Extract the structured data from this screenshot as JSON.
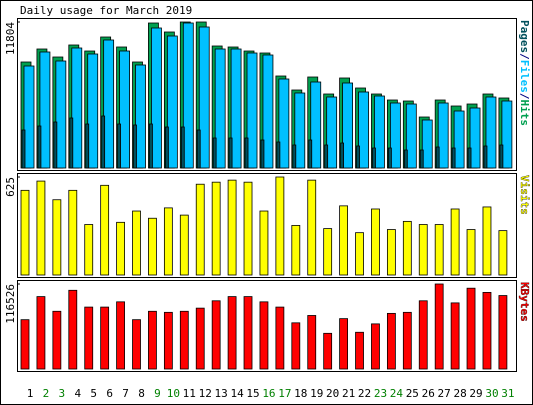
{
  "chart_data": [
    {
      "type": "bar",
      "title": "Daily usage for March 2019",
      "ylim": [
        0,
        11804
      ],
      "yticks": [
        11804
      ],
      "series": [
        {
          "name": "Pages",
          "color": "#00505c",
          "values": [
            3072,
            3396,
            3719,
            4043,
            3557,
            4204,
            3557,
            3477,
            3557,
            3315,
            3315,
            3072,
            2426,
            2426,
            2426,
            2264,
            2102,
            1860,
            2264,
            1860,
            2021,
            1779,
            1617,
            1617,
            1455,
            1455,
            1698,
            1617,
            1617,
            1779,
            1860
          ]
        },
        {
          "name": "Files",
          "color": "#00c0ff",
          "values": [
            8247,
            9379,
            8651,
            9702,
            9217,
            10349,
            9459,
            8328,
            11319,
            10672,
            11723,
            11400,
            9621,
            9621,
            9298,
            9136,
            7196,
            6064,
            6953,
            5740,
            6872,
            6145,
            5821,
            5255,
            5174,
            3881,
            5255,
            4608,
            4851,
            5740,
            5417
          ]
        },
        {
          "name": "Hits",
          "color": "#00a050",
          "values": [
            8570,
            9621,
            8974,
            9945,
            9459,
            10591,
            9783,
            8570,
            11723,
            10996,
            11804,
            11804,
            9864,
            9783,
            9459,
            9298,
            7438,
            6306,
            7357,
            5983,
            7277,
            6468,
            5983,
            5498,
            5417,
            4123,
            5498,
            5013,
            5174,
            5983,
            5660
          ]
        }
      ]
    },
    {
      "type": "bar",
      "ylim": [
        0,
        625
      ],
      "yticks": [
        625
      ],
      "series": [
        {
          "name": "Visits",
          "color": "#ffff00",
          "values": [
            540,
            599,
            480,
            540,
            322,
            572,
            336,
            408,
            362,
            428,
            382,
            579,
            592,
            605,
            592,
            408,
            625,
            316,
            605,
            296,
            441,
            270,
            421,
            290,
            342,
            322,
            322,
            421,
            290,
            434,
            283
          ]
        }
      ]
    },
    {
      "type": "bar",
      "ylim": [
        0,
        116526
      ],
      "yticks": [
        116526
      ],
      "categories": [
        "1",
        "2",
        "3",
        "4",
        "5",
        "6",
        "7",
        "8",
        "9",
        "10",
        "11",
        "12",
        "13",
        "14",
        "15",
        "16",
        "17",
        "18",
        "19",
        "20",
        "21",
        "22",
        "23",
        "24",
        "25",
        "26",
        "27",
        "28",
        "29",
        "30",
        "31"
      ],
      "category_colors": [
        "#000000",
        "#008000",
        "#008000",
        "#000000",
        "#000000",
        "#000000",
        "#000000",
        "#000000",
        "#008000",
        "#008000",
        "#000000",
        "#000000",
        "#000000",
        "#000000",
        "#000000",
        "#008000",
        "#008000",
        "#000000",
        "#000000",
        "#000000",
        "#000000",
        "#000000",
        "#008000",
        "#008000",
        "#000000",
        "#000000",
        "#000000",
        "#000000",
        "#000000",
        "#008000",
        "#008000"
      ],
      "series": [
        {
          "name": "KBytes",
          "color": "#ff0000",
          "values": [
            67614,
            99263,
            79123,
            107895,
            84877,
            84877,
            92070,
            67614,
            79123,
            77684,
            79123,
            83439,
            93509,
            99263,
            99263,
            92070,
            84877,
            63298,
            73369,
            48912,
            69053,
            50351,
            61860,
            76246,
            77684,
            93509,
            116526,
            90632,
            110772,
            105018,
            100702
          ]
        }
      ]
    }
  ]
}
